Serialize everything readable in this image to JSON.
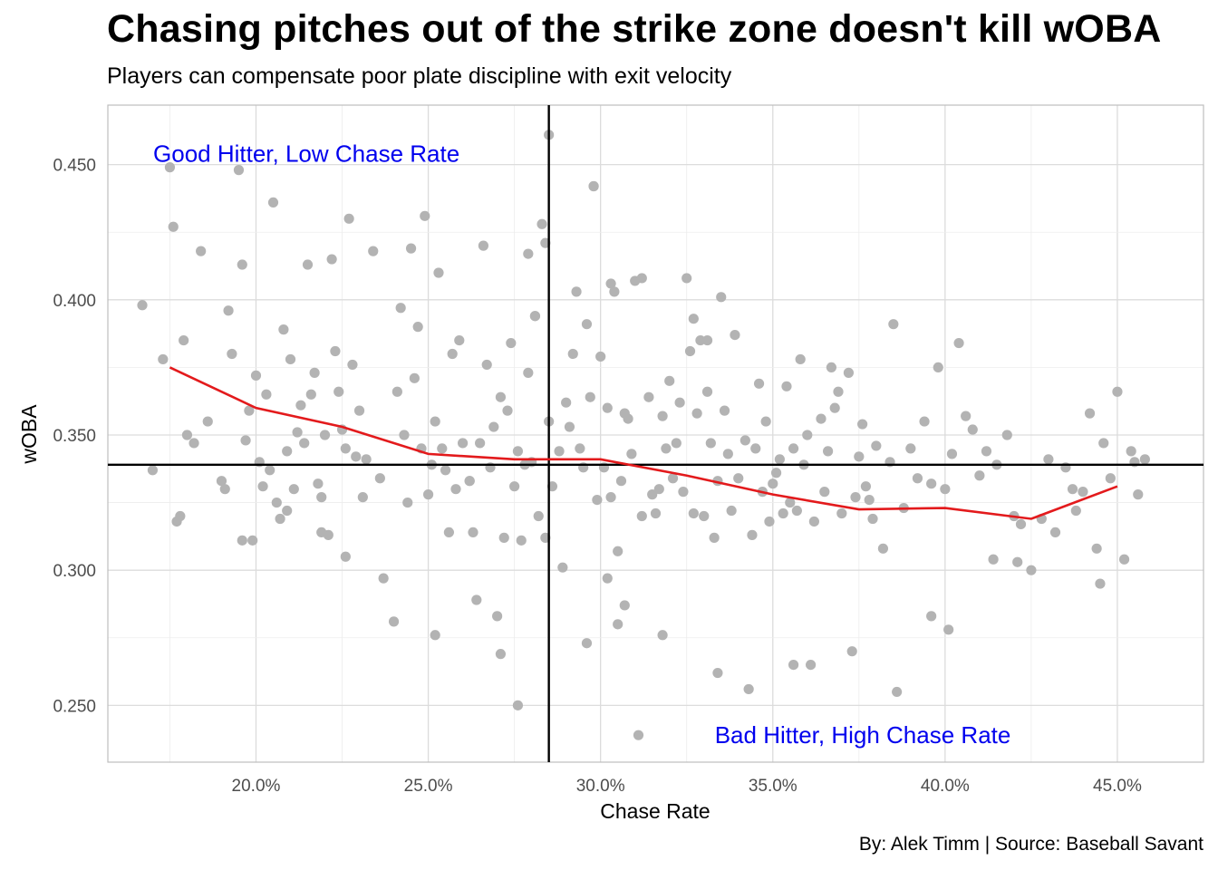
{
  "title": "Chasing pitches out of the strike zone doesn't kill wOBA",
  "subtitle": "Players can compensate poor plate discipline with exit velocity",
  "caption": "By: Alek Timm  |  Source: Baseball Savant",
  "chart_data": {
    "type": "scatter",
    "xlabel": "Chase Rate",
    "ylabel": "wOBA",
    "xlim": [
      0.157,
      0.475
    ],
    "ylim": [
      0.229,
      0.472
    ],
    "x_ticks": [
      0.2,
      0.25,
      0.3,
      0.35,
      0.4,
      0.45
    ],
    "x_tick_labels": [
      "20.0%",
      "25.0%",
      "30.0%",
      "35.0%",
      "40.0%",
      "45.0%"
    ],
    "y_ticks": [
      0.25,
      0.3,
      0.35,
      0.4,
      0.45
    ],
    "y_tick_labels": [
      "0.250",
      "0.300",
      "0.350",
      "0.400",
      "0.450"
    ],
    "grid": true,
    "colors": {
      "points": "#b3b3b3",
      "trend": "#e31a1c",
      "reference": "#000000",
      "annotation": "#0000ee"
    },
    "reference_lines": {
      "vertical_x": 0.285,
      "horizontal_y": 0.339
    },
    "annotations": [
      {
        "text": "Good Hitter, Low Chase Rate",
        "x": 0.167,
        "y": 0.454
      },
      {
        "text": "Bad Hitter, High Chase Rate",
        "x": 0.33,
        "y": 0.239
      }
    ],
    "trend_line": {
      "x": [
        0.175,
        0.2,
        0.225,
        0.25,
        0.275,
        0.3,
        0.325,
        0.35,
        0.375,
        0.4,
        0.425,
        0.45
      ],
      "y": [
        0.375,
        0.36,
        0.353,
        0.343,
        0.341,
        0.341,
        0.335,
        0.328,
        0.3225,
        0.323,
        0.319,
        0.331
      ]
    },
    "points": {
      "x": [
        0.167,
        0.17,
        0.173,
        0.175,
        0.176,
        0.177,
        0.178,
        0.179,
        0.18,
        0.182,
        0.184,
        0.19,
        0.191,
        0.192,
        0.193,
        0.195,
        0.196,
        0.197,
        0.198,
        0.199,
        0.2,
        0.201,
        0.202,
        0.203,
        0.204,
        0.205,
        0.206,
        0.207,
        0.208,
        0.209,
        0.21,
        0.211,
        0.212,
        0.213,
        0.214,
        0.215,
        0.216,
        0.217,
        0.218,
        0.219,
        0.22,
        0.221,
        0.222,
        0.223,
        0.224,
        0.225,
        0.226,
        0.227,
        0.228,
        0.229,
        0.23,
        0.231,
        0.232,
        0.234,
        0.236,
        0.24,
        0.241,
        0.242,
        0.243,
        0.244,
        0.245,
        0.246,
        0.247,
        0.248,
        0.249,
        0.25,
        0.251,
        0.252,
        0.253,
        0.254,
        0.255,
        0.256,
        0.257,
        0.258,
        0.259,
        0.26,
        0.262,
        0.263,
        0.264,
        0.265,
        0.266,
        0.267,
        0.268,
        0.269,
        0.27,
        0.271,
        0.272,
        0.273,
        0.274,
        0.275,
        0.276,
        0.277,
        0.278,
        0.279,
        0.28,
        0.281,
        0.282,
        0.283,
        0.284,
        0.285,
        0.286,
        0.288,
        0.29,
        0.291,
        0.292,
        0.293,
        0.294,
        0.295,
        0.296,
        0.297,
        0.298,
        0.299,
        0.3,
        0.301,
        0.302,
        0.303,
        0.304,
        0.305,
        0.306,
        0.307,
        0.308,
        0.309,
        0.31,
        0.312,
        0.314,
        0.315,
        0.316,
        0.317,
        0.318,
        0.319,
        0.32,
        0.321,
        0.322,
        0.323,
        0.324,
        0.325,
        0.326,
        0.327,
        0.328,
        0.329,
        0.33,
        0.331,
        0.332,
        0.333,
        0.334,
        0.335,
        0.336,
        0.337,
        0.338,
        0.339,
        0.34,
        0.342,
        0.344,
        0.345,
        0.346,
        0.347,
        0.348,
        0.349,
        0.35,
        0.351,
        0.352,
        0.353,
        0.354,
        0.355,
        0.356,
        0.357,
        0.358,
        0.359,
        0.36,
        0.362,
        0.364,
        0.365,
        0.366,
        0.367,
        0.368,
        0.369,
        0.37,
        0.372,
        0.374,
        0.375,
        0.376,
        0.377,
        0.378,
        0.379,
        0.38,
        0.382,
        0.384,
        0.385,
        0.388,
        0.39,
        0.392,
        0.394,
        0.396,
        0.398,
        0.4,
        0.402,
        0.404,
        0.406,
        0.408,
        0.41,
        0.412,
        0.415,
        0.418,
        0.42,
        0.422,
        0.425,
        0.428,
        0.43,
        0.432,
        0.435,
        0.438,
        0.44,
        0.442,
        0.444,
        0.446,
        0.448,
        0.45,
        0.452,
        0.454,
        0.456,
        0.458,
        0.285,
        0.284,
        0.281,
        0.279,
        0.298,
        0.303,
        0.312,
        0.327,
        0.331,
        0.219,
        0.226,
        0.209,
        0.196,
        0.186,
        0.237,
        0.252,
        0.262,
        0.271,
        0.276,
        0.289,
        0.296,
        0.305,
        0.318,
        0.334,
        0.343,
        0.356,
        0.361,
        0.373,
        0.386,
        0.396,
        0.401,
        0.414,
        0.421,
        0.437,
        0.445,
        0.455,
        0.311,
        0.307,
        0.302
      ],
      "y": [
        0.398,
        0.337,
        0.378,
        0.449,
        0.427,
        0.318,
        0.32,
        0.385,
        0.35,
        0.347,
        0.418,
        0.333,
        0.33,
        0.396,
        0.38,
        0.448,
        0.413,
        0.348,
        0.359,
        0.311,
        0.372,
        0.34,
        0.331,
        0.365,
        0.337,
        0.436,
        0.325,
        0.319,
        0.389,
        0.344,
        0.378,
        0.33,
        0.351,
        0.361,
        0.347,
        0.413,
        0.365,
        0.373,
        0.332,
        0.327,
        0.35,
        0.313,
        0.415,
        0.381,
        0.366,
        0.352,
        0.345,
        0.43,
        0.376,
        0.342,
        0.359,
        0.327,
        0.341,
        0.418,
        0.334,
        0.281,
        0.366,
        0.397,
        0.35,
        0.325,
        0.419,
        0.371,
        0.39,
        0.345,
        0.431,
        0.328,
        0.339,
        0.355,
        0.41,
        0.345,
        0.337,
        0.314,
        0.38,
        0.33,
        0.385,
        0.347,
        0.333,
        0.314,
        0.289,
        0.347,
        0.42,
        0.376,
        0.338,
        0.353,
        0.283,
        0.364,
        0.312,
        0.359,
        0.384,
        0.331,
        0.344,
        0.311,
        0.339,
        0.373,
        0.34,
        0.394,
        0.32,
        0.428,
        0.312,
        0.355,
        0.331,
        0.344,
        0.362,
        0.353,
        0.38,
        0.403,
        0.345,
        0.338,
        0.391,
        0.364,
        0.442,
        0.326,
        0.379,
        0.338,
        0.36,
        0.327,
        0.403,
        0.307,
        0.333,
        0.358,
        0.356,
        0.343,
        0.407,
        0.32,
        0.364,
        0.328,
        0.321,
        0.33,
        0.357,
        0.345,
        0.37,
        0.334,
        0.347,
        0.362,
        0.329,
        0.408,
        0.381,
        0.321,
        0.358,
        0.385,
        0.32,
        0.366,
        0.347,
        0.312,
        0.333,
        0.401,
        0.359,
        0.343,
        0.322,
        0.387,
        0.334,
        0.348,
        0.313,
        0.345,
        0.369,
        0.329,
        0.355,
        0.318,
        0.332,
        0.336,
        0.341,
        0.321,
        0.368,
        0.325,
        0.345,
        0.322,
        0.378,
        0.339,
        0.35,
        0.318,
        0.356,
        0.329,
        0.344,
        0.375,
        0.36,
        0.366,
        0.321,
        0.373,
        0.327,
        0.342,
        0.354,
        0.331,
        0.326,
        0.319,
        0.346,
        0.308,
        0.34,
        0.391,
        0.323,
        0.345,
        0.334,
        0.355,
        0.332,
        0.375,
        0.33,
        0.343,
        0.384,
        0.357,
        0.352,
        0.335,
        0.344,
        0.339,
        0.35,
        0.32,
        0.317,
        0.3,
        0.319,
        0.341,
        0.314,
        0.338,
        0.322,
        0.329,
        0.358,
        0.308,
        0.347,
        0.334,
        0.366,
        0.304,
        0.344,
        0.328,
        0.341,
        0.461,
        0.421,
        0.394,
        0.417,
        0.442,
        0.406,
        0.408,
        0.393,
        0.385,
        0.314,
        0.305,
        0.322,
        0.311,
        0.355,
        0.297,
        0.276,
        0.333,
        0.269,
        0.25,
        0.301,
        0.273,
        0.28,
        0.276,
        0.262,
        0.256,
        0.265,
        0.265,
        0.27,
        0.255,
        0.283,
        0.278,
        0.304,
        0.303,
        0.33,
        0.295,
        0.34,
        0.239,
        0.287,
        0.297
      ]
    }
  }
}
